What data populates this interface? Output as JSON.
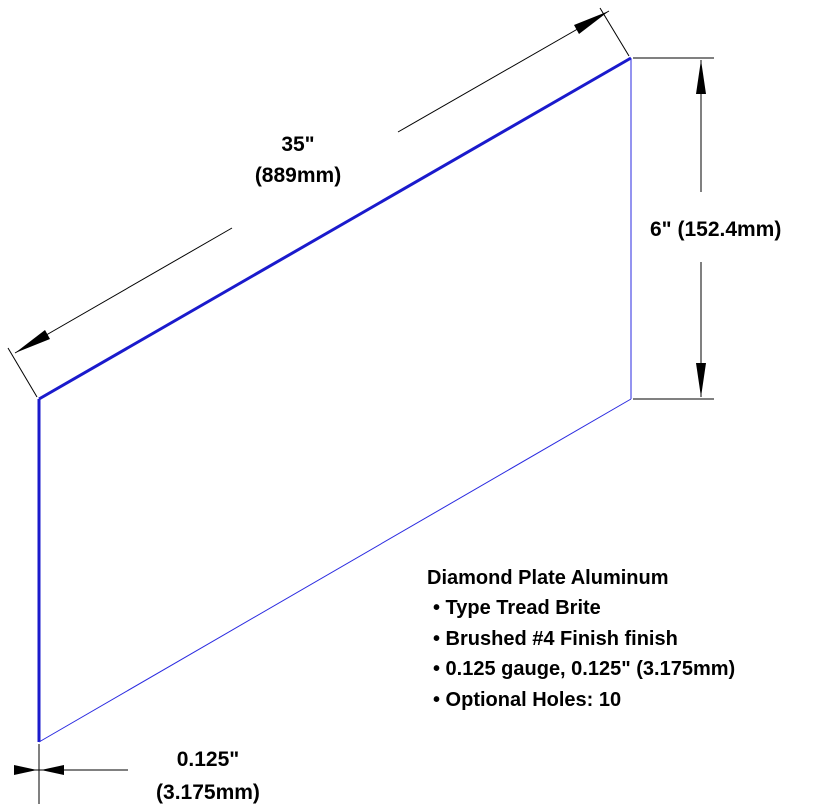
{
  "dimensions": {
    "length": {
      "inches": "35\"",
      "mm": "(889mm)"
    },
    "height": {
      "label": "6\" (152.4mm)"
    },
    "thickness": {
      "inches": "0.125\"",
      "mm": "(3.175mm)"
    }
  },
  "specs": {
    "title": "Diamond Plate Aluminum",
    "items": [
      "• Type Tread Brite",
      "• Brushed #4 Finish finish",
      "• 0.125 gauge, 0.125\" (3.175mm)",
      "• Optional Holes: 10"
    ]
  },
  "colors": {
    "plate_edge": "#1a1acc",
    "plate_edge_thin": "#2a2ae0",
    "dimension_line": "#000000",
    "text": "#000000"
  }
}
